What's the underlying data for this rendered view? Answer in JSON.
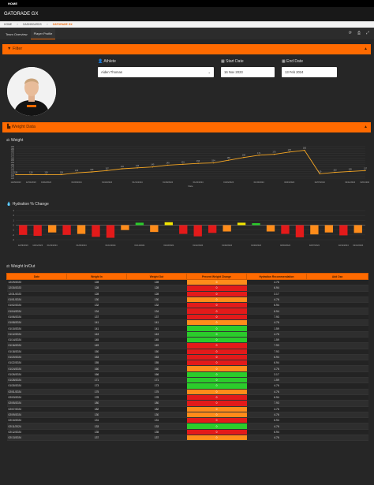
{
  "topbar": {
    "label": "HOME"
  },
  "app": {
    "title": "GATORADE GX"
  },
  "breadcrumbs": [
    "HOME",
    "DASHBOARDS",
    "GATORADE GX"
  ],
  "tabs": [
    {
      "label": "Team Overview",
      "active": false
    },
    {
      "label": "Player Profile",
      "active": true
    }
  ],
  "toolbar_icons": [
    "refresh-icon",
    "print-icon",
    "expand-icon"
  ],
  "filter": {
    "title": "Filter",
    "athlete_label": "Athlete",
    "athlete_value": "Aiden Thomas",
    "start_label": "Start Date",
    "start_value": "16 Nov 2023",
    "end_label": "End Date",
    "end_value": "13 Feb 2024"
  },
  "weight_data_title": "Weight Data",
  "weight_chart": {
    "chart_data": {
      "type": "line",
      "title": "Weight",
      "xlabel": "Date",
      "ylabel": "",
      "ylim": [
        120,
        190
      ],
      "yticks": [
        120,
        125,
        130,
        135,
        140,
        145,
        150,
        155,
        160,
        165,
        170,
        175,
        180,
        185,
        190
      ],
      "x": [
        "12/29/2023",
        "12/31/2023",
        "01/02/2024",
        "01/04/2024",
        "01/06/2024",
        "01/08/2024",
        "01/10/2024",
        "01/12/2024",
        "01/14/2024",
        "01/16/2024",
        "01/18/2024",
        "01/20/2024",
        "01/22/2024",
        "01/24/2024",
        "01/26/2024",
        "01/28/2024",
        "01/30/2024",
        "02/01/2024",
        "02/03/2024",
        "02/05/2024",
        "02/07/2024",
        "02/09/2024",
        "02/11/2024",
        "02/13/2024"
      ],
      "values": [
        128,
        128,
        128,
        128,
        132,
        134,
        137,
        141,
        143,
        145,
        149,
        151,
        153,
        154,
        160,
        166,
        171,
        173,
        178,
        182,
        130,
        133,
        135,
        137
      ],
      "xtick_labels": [
        "12/29/2023",
        "12/31/2023",
        "01/02/2024",
        "01/06/2024",
        "01/10/2024",
        "01/14/2024",
        "01/18/2024",
        "01/22/2024",
        "01/26/2024",
        "01/30/2024",
        "02/03/2024",
        "02/07/2024",
        "02/11/2024",
        "02/13/2024"
      ],
      "color": "#f5a623"
    }
  },
  "hydration_chart": {
    "chart_data": {
      "type": "bar",
      "title": "Hydration % Change",
      "ylim": [
        -3,
        3
      ],
      "yticks": [
        3,
        2,
        1,
        0,
        -1,
        -2,
        -3
      ],
      "x": [
        "12/29/2023",
        "12/31/2023",
        "01/02/2024",
        "01/04/2024",
        "01/06/2024",
        "01/08/2024",
        "01/10/2024",
        "01/12/2024",
        "01/14/2024",
        "01/16/2024",
        "01/18/2024",
        "01/20/2024",
        "01/22/2024",
        "01/24/2024",
        "01/26/2024",
        "01/28/2024",
        "01/30/2024",
        "02/01/2024",
        "02/03/2024",
        "02/05/2024",
        "02/07/2024",
        "02/09/2024",
        "02/11/2024",
        "02/13/2024"
      ],
      "values": [
        -2,
        -2.2,
        -1.5,
        -2,
        -1.8,
        -2.4,
        -2.6,
        -1,
        0.5,
        -1.4,
        0.6,
        -1.8,
        -2.3,
        -1.6,
        -1.3,
        0.5,
        0.4,
        -1.3,
        -1.8,
        -2.5,
        -1.9,
        -1.5,
        -2.1,
        -1.6
      ],
      "colors": [
        "#e31a1a",
        "#e31a1a",
        "#ff8c1a",
        "#e31a1a",
        "#ff8c1a",
        "#e31a1a",
        "#e31a1a",
        "#ff8c1a",
        "#2bcc2b",
        "#ff8c1a",
        "#f2e600",
        "#e31a1a",
        "#e31a1a",
        "#e31a1a",
        "#ff8c1a",
        "#f2e600",
        "#2bcc2b",
        "#ff8c1a",
        "#e31a1a",
        "#e31a1a",
        "#ff8c1a",
        "#ff8c1a",
        "#e31a1a",
        "#ff8c1a"
      ],
      "xtick_labels": [
        "12/29/2023",
        "12/31/2023",
        "01/02/2024",
        "01/06/2024",
        "01/10/2024",
        "01/14/2024",
        "01/18/2024",
        "01/22/2024",
        "01/26/2024",
        "01/30/2024",
        "02/03/2024",
        "02/07/2024",
        "02/11/2024",
        "02/13/2024"
      ]
    }
  },
  "weight_table": {
    "title": "Weight In/Out",
    "headers": [
      "Date",
      "Weight In",
      "Weight Out",
      "Percent Weight Change",
      "Hydration Recommendation",
      "Add Oza"
    ],
    "rows": [
      [
        "12/29/2023",
        "128",
        "128",
        "0",
        "4.76",
        "#ff8c1a"
      ],
      [
        "12/30/2023",
        "128",
        "128",
        "0",
        "6.94",
        "#e31a1a"
      ],
      [
        "12/31/2023",
        "128",
        "128",
        "0",
        "3.17",
        "#e31a1a"
      ],
      [
        "01/01/2024",
        "130",
        "130",
        "0",
        "4.76",
        "#ff8c1a"
      ],
      [
        "01/02/2024",
        "132",
        "132",
        "0",
        "6.94",
        "#e31a1a"
      ],
      [
        "01/04/2024",
        "134",
        "134",
        "0",
        "6.94",
        "#e31a1a"
      ],
      [
        "01/06/2024",
        "137",
        "137",
        "0",
        "7.93",
        "#e31a1a"
      ],
      [
        "01/08/2024",
        "141",
        "141",
        "0",
        "4.76",
        "#ff8c1a"
      ],
      [
        "01/10/2024",
        "141",
        "141",
        "0",
        "1.59",
        "#2bcc2b"
      ],
      [
        "01/12/2024",
        "143",
        "143",
        "0",
        "4.76",
        "#2bcc2b"
      ],
      [
        "01/14/2024",
        "145",
        "145",
        "0",
        "1.59",
        "#2bcc2b"
      ],
      [
        "01/16/2024",
        "149",
        "149",
        "0",
        "7.93",
        "#e31a1a"
      ],
      [
        "01/18/2024",
        "150",
        "150",
        "0",
        "7.93",
        "#e31a1a"
      ],
      [
        "01/20/2024",
        "153",
        "153",
        "0",
        "6.94",
        "#e31a1a"
      ],
      [
        "01/22/2024",
        "155",
        "155",
        "0",
        "6.94",
        "#e31a1a"
      ],
      [
        "01/24/2024",
        "160",
        "160",
        "0",
        "4.76",
        "#ff8c1a"
      ],
      [
        "01/26/2024",
        "166",
        "166",
        "0",
        "3.17",
        "#2bcc2b"
      ],
      [
        "01/28/2024",
        "171",
        "171",
        "0",
        "1.59",
        "#2bcc2b"
      ],
      [
        "01/30/2024",
        "173",
        "173",
        "0",
        "4.76",
        "#2bcc2b"
      ],
      [
        "02/01/2024",
        "175",
        "175",
        "0",
        "4.76",
        "#ff8c1a"
      ],
      [
        "02/03/2024",
        "178",
        "178",
        "0",
        "6.94",
        "#e31a1a"
      ],
      [
        "02/05/2024",
        "180",
        "180",
        "0",
        "7.93",
        "#e31a1a"
      ],
      [
        "02/07/2024",
        "182",
        "182",
        "0",
        "4.76",
        "#ff8c1a"
      ],
      [
        "02/09/2024",
        "130",
        "130",
        "0",
        "4.76",
        "#ff8c1a"
      ],
      [
        "02/10/2024",
        "131",
        "131",
        "0",
        "6.94",
        "#e31a1a"
      ],
      [
        "02/11/2024",
        "133",
        "133",
        "0",
        "4.76",
        "#2bcc2b"
      ],
      [
        "02/12/2024",
        "135",
        "135",
        "0",
        "6.94",
        "#e31a1a"
      ],
      [
        "02/13/2024",
        "137",
        "137",
        "0",
        "4.76",
        "#ff8c1a"
      ]
    ]
  }
}
